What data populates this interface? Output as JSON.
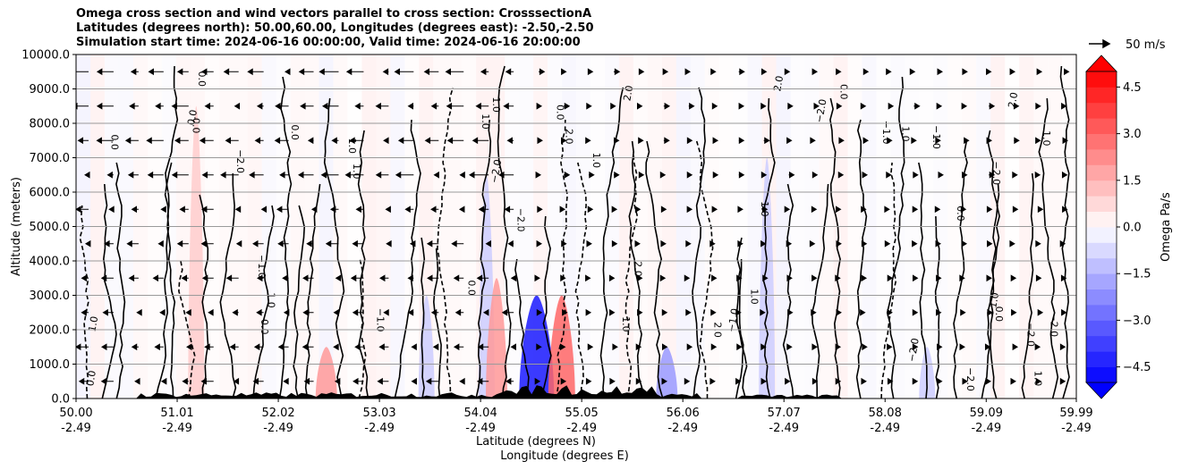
{
  "chart_data": {
    "type": "heatmap",
    "title_lines": [
      "Omega cross section and wind vectors parallel to cross section: CrosssectionA",
      "Latitudes (degrees north): 50.00,60.00, Longitudes (degrees east): -2.50,-2.50",
      "Simulation start time: 2024-06-16 00:00:00, Valid time: 2024-06-16 20:00:00"
    ],
    "ylabel": "Altitude (meters)",
    "xlabel_lines": [
      "Latitude (degrees N)",
      "Longitude (degrees E)"
    ],
    "ylim": [
      0,
      10000
    ],
    "y_ticks": [
      "0.0",
      "1000.0",
      "2000.0",
      "3000.0",
      "4000.0",
      "5000.0",
      "6000.0",
      "7000.0",
      "8000.0",
      "9000.0",
      "10000.0"
    ],
    "y_tick_values": [
      0,
      1000,
      2000,
      3000,
      4000,
      5000,
      6000,
      7000,
      8000,
      9000,
      10000
    ],
    "x_ticks_lat": [
      "50.00",
      "51.01",
      "52.02",
      "53.03",
      "54.04",
      "55.05",
      "56.06",
      "57.07",
      "58.08",
      "59.09",
      "59.99"
    ],
    "x_ticks_lon": [
      "-2.49",
      "-2.49",
      "-2.49",
      "-2.49",
      "-2.49",
      "-2.49",
      "-2.49",
      "-2.49",
      "-2.49",
      "-2.49",
      "-2.49"
    ],
    "x_tick_values": [
      50.0,
      51.01,
      52.02,
      53.03,
      54.04,
      55.05,
      56.06,
      57.07,
      58.08,
      59.09,
      59.99
    ],
    "xlim": [
      50.0,
      59.99
    ],
    "grid": true,
    "colorbar": {
      "label": "Omega Pa/s",
      "range": [
        -5,
        5
      ],
      "ticks": [
        "4.5",
        "3.0",
        "1.5",
        "0.0",
        "−1.5",
        "−3.0",
        "−4.5"
      ],
      "tick_values": [
        4.5,
        3.0,
        1.5,
        0.0,
        -1.5,
        -3.0,
        -4.5
      ],
      "extend": "both",
      "colormap": "bwr"
    },
    "quiver_key": "50 m/s",
    "contour_labels": [
      "0.0",
      "1.0",
      "−1.0",
      "2.0",
      "−2.0"
    ],
    "omega_features": [
      {
        "lat": 51.2,
        "alt_top": 8500,
        "omega": 1.0
      },
      {
        "lat": 52.5,
        "alt_top": 1500,
        "omega": 2.0
      },
      {
        "lat": 53.5,
        "alt_top": 3000,
        "omega": -1.0
      },
      {
        "lat": 54.1,
        "alt_top": 6500,
        "omega": -1.0
      },
      {
        "lat": 54.2,
        "alt_top": 3500,
        "omega": 2.0
      },
      {
        "lat": 54.6,
        "alt_top": 3000,
        "omega": -4.5
      },
      {
        "lat": 54.85,
        "alt_top": 3000,
        "omega": 3.0
      },
      {
        "lat": 55.9,
        "alt_top": 1500,
        "omega": -2.0
      },
      {
        "lat": 56.9,
        "alt_top": 7000,
        "omega": -1.0
      },
      {
        "lat": 58.5,
        "alt_top": 1500,
        "omega": -1.0
      }
    ]
  }
}
